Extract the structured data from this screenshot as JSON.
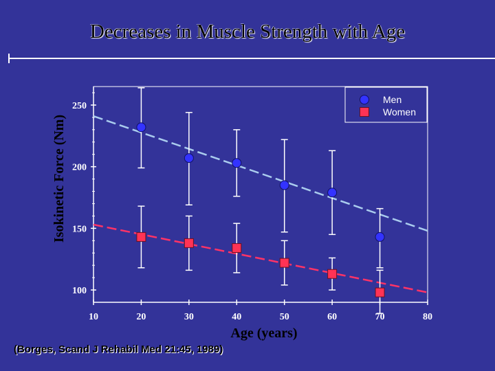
{
  "chart_data": {
    "type": "scatter",
    "title": "Decreases in Muscle Strength with Age",
    "xlabel": "Age (years)",
    "ylabel": "Isokinetic Force (Nm)",
    "xlim": [
      10,
      80
    ],
    "ylim": [
      90,
      265
    ],
    "xticks": [
      10,
      20,
      30,
      40,
      50,
      60,
      70,
      80
    ],
    "yticks": [
      100,
      150,
      200,
      250
    ],
    "grid": false,
    "legend_position": "top-right",
    "series": [
      {
        "name": "Men",
        "marker": "circle",
        "color": "#3333ff",
        "trend_color": "#aaccee",
        "x": [
          20,
          30,
          40,
          50,
          60,
          70
        ],
        "y": [
          232,
          207,
          203,
          185,
          179,
          143
        ],
        "err_upper": [
          264,
          244,
          230,
          222,
          213,
          166
        ],
        "err_lower": [
          199,
          169,
          176,
          147,
          145,
          118
        ],
        "trend": [
          [
            10,
            241
          ],
          [
            80,
            148
          ]
        ]
      },
      {
        "name": "Women",
        "marker": "square",
        "color": "#ff3355",
        "trend_color": "#ff3366",
        "x": [
          20,
          30,
          40,
          50,
          60,
          70
        ],
        "y": [
          143,
          138,
          134,
          122,
          113,
          98
        ],
        "err_upper": [
          168,
          160,
          154,
          140,
          126,
          116
        ],
        "err_lower": [
          118,
          116,
          114,
          104,
          100,
          81
        ],
        "trend": [
          [
            10,
            153
          ],
          [
            80,
            98
          ]
        ]
      }
    ],
    "citation": "(Borges, Scand J Rehabil Med 21:45, 1989)"
  }
}
